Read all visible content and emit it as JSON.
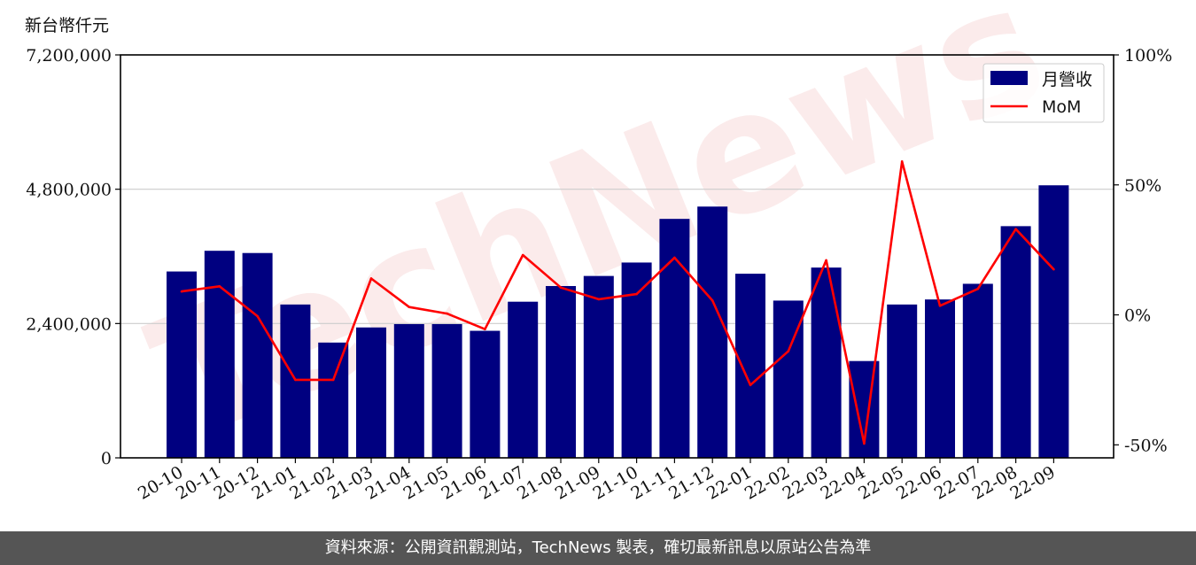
{
  "unit_label": "新台幣仟元",
  "footer_text": "資料來源：公開資訊觀測站，TechNews 製表，確切最新訊息以原站公告為準",
  "watermark": "TechNews",
  "colors": {
    "bar": "#000080",
    "line": "#ff0000",
    "grid": "#cccccc",
    "footer_bg": "#555555"
  },
  "chart_data": {
    "type": "bar",
    "categories": [
      "20-10",
      "20-11",
      "20-12",
      "21-01",
      "21-02",
      "21-03",
      "21-04",
      "21-05",
      "21-06",
      "21-07",
      "21-08",
      "21-09",
      "21-10",
      "21-11",
      "21-12",
      "22-01",
      "22-02",
      "22-03",
      "22-04",
      "22-05",
      "22-06",
      "22-07",
      "22-08",
      "22-09"
    ],
    "series": [
      {
        "name": "月營收",
        "type": "bar",
        "axis": "left",
        "values": [
          3330000,
          3700000,
          3660000,
          2740000,
          2060000,
          2330000,
          2390000,
          2390000,
          2270000,
          2790000,
          3070000,
          3250000,
          3490000,
          4270000,
          4490000,
          3290000,
          2810000,
          3400000,
          1730000,
          2740000,
          2830000,
          3110000,
          4140000,
          4870000
        ]
      },
      {
        "name": "MoM",
        "type": "line",
        "axis": "right",
        "values": [
          9,
          11,
          -0.5,
          -25,
          -25,
          14,
          3,
          0.5,
          -5.5,
          23,
          10.5,
          6,
          8,
          22,
          5.5,
          -27,
          -14,
          21,
          -49.5,
          59,
          3.5,
          10,
          33,
          17.5
        ]
      }
    ],
    "y_left": {
      "min": 0,
      "max": 7200000,
      "ticks": [
        0,
        2400000,
        4800000,
        7200000
      ],
      "tick_labels": [
        "0",
        "2,400,000",
        "4,800,000",
        "7,200,000"
      ]
    },
    "y_right": {
      "min": -55,
      "max": 100,
      "ticks": [
        -50,
        0,
        50,
        100
      ],
      "tick_labels": [
        "-50%",
        "0%",
        "50%",
        "100%"
      ]
    },
    "grid": "horizontal",
    "legend": "top-right"
  }
}
